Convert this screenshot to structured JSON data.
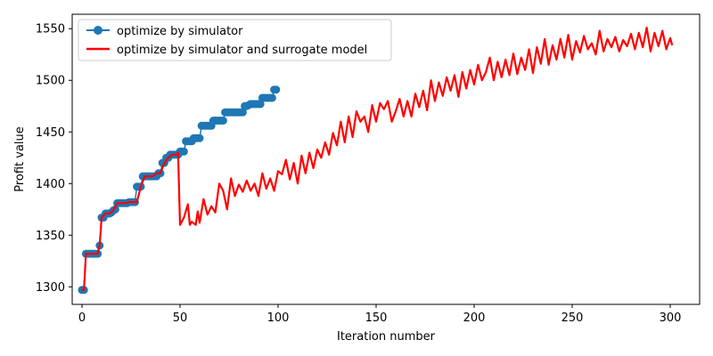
{
  "chart_data": {
    "type": "line",
    "xlabel": "Iteration number",
    "ylabel": "Profit value",
    "xlim": [
      -5,
      315
    ],
    "ylim": [
      1283,
      1564
    ],
    "xticks": [
      0,
      50,
      100,
      150,
      200,
      250,
      300
    ],
    "yticks": [
      1300,
      1350,
      1400,
      1450,
      1500,
      1550
    ],
    "grid": false,
    "legend_position": "upper-left",
    "series": [
      {
        "name": "optimize by simulator",
        "color": "#1f77b4",
        "marker": "circle",
        "x": [
          0,
          1,
          2,
          3,
          4,
          5,
          6,
          7,
          8,
          9,
          10,
          11,
          12,
          13,
          14,
          15,
          16,
          17,
          18,
          19,
          20,
          21,
          22,
          23,
          24,
          25,
          26,
          27,
          28,
          29,
          30,
          31,
          32,
          33,
          34,
          35,
          36,
          37,
          38,
          39,
          40,
          41,
          42,
          43,
          44,
          45,
          46,
          47,
          48,
          49,
          50,
          51,
          52,
          53,
          54,
          55,
          56,
          57,
          58,
          59,
          60,
          61,
          62,
          63,
          64,
          65,
          66,
          67,
          68,
          69,
          70,
          71,
          72,
          73,
          74,
          75,
          76,
          77,
          78,
          79,
          80,
          81,
          82,
          83,
          84,
          85,
          86,
          87,
          88,
          89,
          90,
          91,
          92,
          93,
          94,
          95,
          96,
          97,
          98,
          99
        ],
        "values": [
          1297,
          1297,
          1332,
          1332,
          1332,
          1332,
          1332,
          1332,
          1332,
          1340,
          1367,
          1367,
          1371,
          1371,
          1371,
          1372,
          1374,
          1375,
          1381,
          1381,
          1381,
          1381,
          1381,
          1381,
          1382,
          1382,
          1382,
          1382,
          1397,
          1397,
          1397,
          1407,
          1407,
          1407,
          1407,
          1407,
          1407,
          1407,
          1407,
          1410,
          1410,
          1420,
          1420,
          1425,
          1425,
          1428,
          1428,
          1428,
          1428,
          1428,
          1431,
          1431,
          1431,
          1441,
          1441,
          1441,
          1441,
          1444,
          1444,
          1444,
          1444,
          1456,
          1456,
          1456,
          1456,
          1456,
          1456,
          1461,
          1461,
          1461,
          1461,
          1461,
          1461,
          1469,
          1469,
          1469,
          1469,
          1469,
          1469,
          1469,
          1469,
          1469,
          1469,
          1475,
          1475,
          1476,
          1477,
          1477,
          1477,
          1477,
          1477,
          1477,
          1483,
          1483,
          1483,
          1483,
          1483,
          1483,
          1491,
          1491
        ]
      },
      {
        "name": "optimize by simulator and surrogate model",
        "color": "#ff0000",
        "marker": "none",
        "x": [
          0,
          1,
          2,
          4,
          6,
          8,
          9,
          10,
          12,
          14,
          16,
          18,
          20,
          22,
          24,
          26,
          28,
          30,
          32,
          34,
          36,
          38,
          40,
          42,
          44,
          46,
          48,
          49,
          50,
          52,
          54,
          55,
          56,
          58,
          59,
          60,
          62,
          64,
          66,
          68,
          70,
          72,
          74,
          76,
          78,
          80,
          82,
          84,
          86,
          88,
          90,
          92,
          94,
          96,
          98,
          100,
          102,
          104,
          106,
          108,
          110,
          112,
          114,
          116,
          118,
          120,
          122,
          124,
          126,
          128,
          130,
          132,
          134,
          136,
          138,
          140,
          142,
          144,
          146,
          148,
          150,
          152,
          154,
          156,
          158,
          160,
          162,
          164,
          166,
          168,
          170,
          172,
          174,
          176,
          178,
          180,
          182,
          184,
          186,
          188,
          190,
          192,
          194,
          196,
          198,
          200,
          202,
          204,
          206,
          208,
          210,
          212,
          214,
          216,
          218,
          220,
          222,
          224,
          226,
          228,
          230,
          232,
          234,
          236,
          238,
          240,
          242,
          244,
          246,
          248,
          250,
          252,
          254,
          256,
          258,
          260,
          262,
          264,
          266,
          268,
          270,
          272,
          274,
          276,
          278,
          280,
          282,
          284,
          286,
          288,
          290,
          292,
          294,
          296,
          298,
          300,
          301
        ],
        "values": [
          1297,
          1297,
          1332,
          1332,
          1332,
          1332,
          1340,
          1367,
          1371,
          1371,
          1374,
          1381,
          1381,
          1381,
          1382,
          1382,
          1382,
          1397,
          1407,
          1407,
          1407,
          1410,
          1410,
          1420,
          1425,
          1428,
          1428,
          1430,
          1360,
          1367,
          1380,
          1360,
          1363,
          1360,
          1373,
          1362,
          1385,
          1370,
          1378,
          1372,
          1400,
          1393,
          1375,
          1405,
          1388,
          1399,
          1392,
          1403,
          1393,
          1400,
          1388,
          1410,
          1395,
          1405,
          1393,
          1412,
          1409,
          1423,
          1404,
          1420,
          1400,
          1427,
          1410,
          1430,
          1415,
          1433,
          1425,
          1440,
          1428,
          1449,
          1437,
          1460,
          1440,
          1465,
          1445,
          1470,
          1460,
          1465,
          1450,
          1476,
          1460,
          1478,
          1472,
          1480,
          1460,
          1470,
          1482,
          1465,
          1480,
          1465,
          1487,
          1474,
          1490,
          1471,
          1500,
          1480,
          1498,
          1485,
          1503,
          1490,
          1505,
          1484,
          1508,
          1492,
          1510,
          1496,
          1515,
          1500,
          1508,
          1522,
          1500,
          1518,
          1503,
          1520,
          1505,
          1526,
          1506,
          1522,
          1510,
          1530,
          1507,
          1532,
          1516,
          1540,
          1515,
          1534,
          1520,
          1540,
          1522,
          1544,
          1520,
          1538,
          1527,
          1543,
          1530,
          1536,
          1525,
          1548,
          1528,
          1540,
          1532,
          1542,
          1528,
          1539,
          1533,
          1545,
          1530,
          1546,
          1532,
          1551,
          1528,
          1546,
          1533,
          1548,
          1530,
          1541,
          1534
        ]
      }
    ]
  }
}
